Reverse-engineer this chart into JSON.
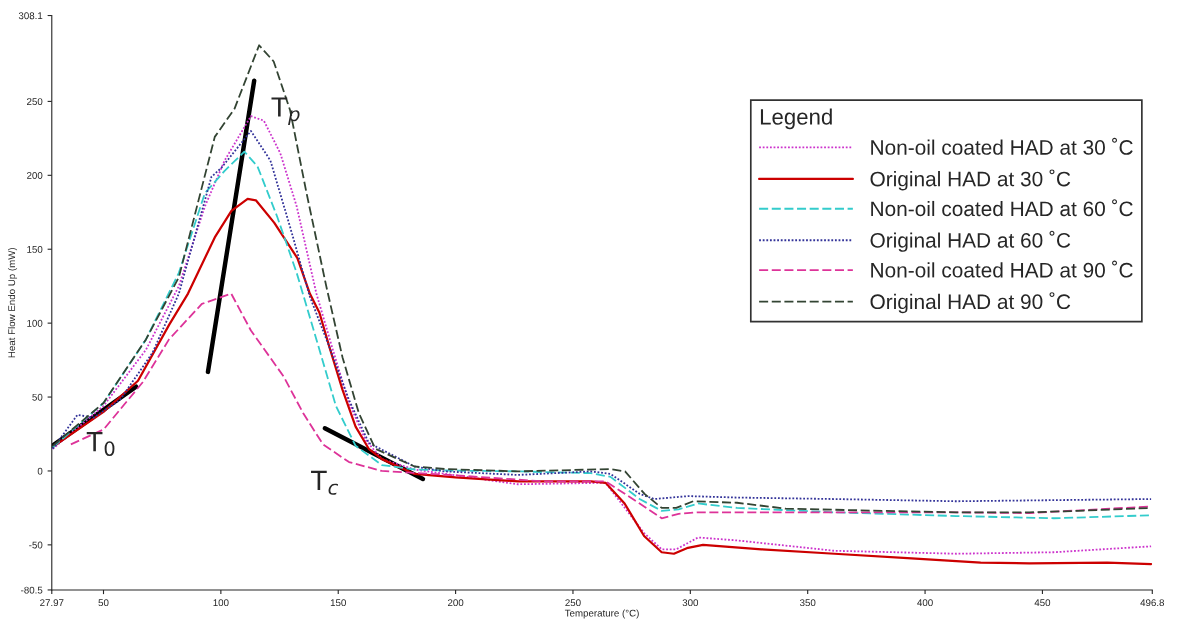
{
  "chart_data": {
    "type": "line",
    "xlabel": "Temperature (°C)",
    "ylabel": "Heat Flow Endo Up (mW)",
    "legend_title": "Legend",
    "legend": "right",
    "grid": false,
    "xlim": [
      27.97,
      496.8
    ],
    "ylim": [
      -80.5,
      308.1
    ],
    "xticks": [
      27.97,
      50,
      100,
      150,
      200,
      250,
      300,
      350,
      400,
      450,
      496.8
    ],
    "yticks": [
      -80.5,
      -50,
      0,
      50,
      100,
      150,
      200,
      250,
      308.1
    ],
    "series": [
      {
        "name": "Non-oil coated HAD at 30 ˚C",
        "color": "#cc33cc",
        "line_style": "dotted",
        "x": [
          28.4,
          50,
          68.1,
          82.1,
          93.2,
          101.6,
          112.8,
          118.3,
          125.3,
          132.3,
          140.7,
          147.7,
          154.6,
          161.6,
          168.6,
          182.5,
          226.6,
          263.9,
          280.3,
          287.8,
          294,
          303.3,
          319.9,
          361.4,
          413.3,
          454.8,
          496.3
        ],
        "values": [
          15,
          44,
          82,
          125,
          179,
          210,
          240,
          237,
          215,
          179,
          120,
          82,
          46,
          21,
          8,
          1,
          -9,
          -8,
          -42,
          -53,
          -53,
          -45,
          -47,
          -54,
          -56,
          -55,
          -51
        ]
      },
      {
        "name": "Original HAD at 30 ˚C",
        "color": "#cc0000",
        "line_style": "solid",
        "x": [
          29,
          50,
          64.7,
          78,
          86,
          97.4,
          104.5,
          111.4,
          115,
          122.7,
          132.6,
          137.9,
          142,
          146.2,
          151.8,
          157.4,
          163,
          168.6,
          182.5,
          200,
          226.6,
          257.7,
          263.9,
          272,
          280.3,
          287.8,
          293,
          299,
          305.4,
          330.3,
          361.4,
          392.5,
          423.7,
          444.4,
          477.6,
          496.3
        ],
        "values": [
          17,
          40,
          61,
          99,
          120,
          158,
          176,
          184,
          183,
          168,
          144,
          120,
          107,
          84,
          55,
          30,
          15,
          8,
          -2,
          -4.4,
          -7,
          -7,
          -8,
          -22,
          -44,
          -55,
          -56,
          -52,
          -50,
          -53,
          -56,
          -59,
          -62,
          -62.5,
          -62,
          -63
        ]
      },
      {
        "name": "Non-oil coated HAD at 60 ˚C",
        "color": "#33cccc",
        "line_style": "dashed",
        "x": [
          28.4,
          50,
          68.1,
          82.1,
          93.2,
          101.6,
          110,
          115.6,
          124,
          132.3,
          140.7,
          149,
          157.4,
          168.6,
          182.5,
          195.4,
          226.6,
          257.7,
          266,
          278.4,
          287.8,
          295,
          303.3,
          319.9,
          361.4,
          413.3,
          454.8,
          496.3
        ],
        "values": [
          16,
          46,
          89,
          134,
          188,
          203,
          216,
          206,
          172,
          134,
          89,
          44,
          17,
          4,
          1,
          0.3,
          -0.3,
          -1.5,
          -4,
          -19,
          -27,
          -26,
          -22,
          -25,
          -28,
          -30.5,
          -32,
          -30
        ]
      },
      {
        "name": "Original HAD at 60 ˚C",
        "color": "#333399",
        "line_style": "dotted",
        "x": [
          28.4,
          38.9,
          45.8,
          57,
          70.9,
          82.1,
          96,
          100.2,
          112.8,
          121.1,
          129.5,
          137.9,
          146.2,
          154.6,
          163,
          182.5,
          195.4,
          226.6,
          257.7,
          266,
          278.4,
          284.6,
          299.1,
          319.9,
          361.4,
          413.3,
          496.3
        ],
        "values": [
          15,
          38,
          36,
          48,
          80,
          120,
          199,
          205,
          230,
          210,
          165,
          118,
          84,
          48,
          19,
          3,
          -0.3,
          -2.7,
          -0.3,
          -2,
          -15.5,
          -19,
          -17,
          -18,
          -19,
          -20.5,
          -19
        ]
      },
      {
        "name": "Non-oil coated HAD at 90 ˚C",
        "color": "#dd3399",
        "line_style": "dashed",
        "x": [
          36.1,
          50,
          66.7,
          77.9,
          91.9,
          104.4,
          112.8,
          126.7,
          135.1,
          143.5,
          154.6,
          168.6,
          200,
          237,
          263.9,
          278.4,
          287.8,
          295,
          303.3,
          361.4,
          413.3,
          444.4,
          496.3
        ],
        "values": [
          18,
          28,
          60,
          89,
          113,
          120,
          95,
          64,
          39,
          18,
          6,
          0,
          -3,
          -7,
          -7,
          -22,
          -32,
          -29,
          -28,
          -28,
          -28,
          -28.5,
          -24
        ]
      },
      {
        "name": "Original HAD at 90 ˚C",
        "color": "#334433",
        "line_style": "dashed",
        "x": [
          28.4,
          50,
          68.1,
          82.1,
          97.4,
          105.8,
          116.3,
          122.5,
          129.5,
          136.5,
          144.9,
          151.8,
          158.8,
          165.8,
          182.5,
          195.4,
          226.6,
          266,
          272.2,
          280.5,
          287.8,
          294,
          301.2,
          319.9,
          340.7,
          382.2,
          413.3,
          444.4,
          465.1,
          496.3
        ],
        "values": [
          17,
          46,
          89,
          131,
          226,
          245,
          288,
          277,
          244,
          188,
          125,
          77,
          39,
          15,
          3,
          1.3,
          -0.3,
          1.3,
          -0.3,
          -15.5,
          -25,
          -25,
          -20.5,
          -21.5,
          -25.5,
          -27,
          -28,
          -28,
          -27,
          -25
        ]
      },
      {
        "color": "#000000",
        "line_style": "solid",
        "x": [
          27.97,
          63.9
        ],
        "values": [
          16.8,
          57
        ]
      },
      {
        "color": "#000000",
        "line_style": "solid",
        "x": [
          94.5,
          114.2
        ],
        "values": [
          67,
          264
        ]
      },
      {
        "color": "#000000",
        "line_style": "solid",
        "x": [
          144.3,
          186.1
        ],
        "values": [
          28.9,
          -5.4
        ]
      }
    ],
    "annotations": [
      "T$_{0}$",
      "T$_{p}$",
      "T$_{c}$"
    ]
  }
}
